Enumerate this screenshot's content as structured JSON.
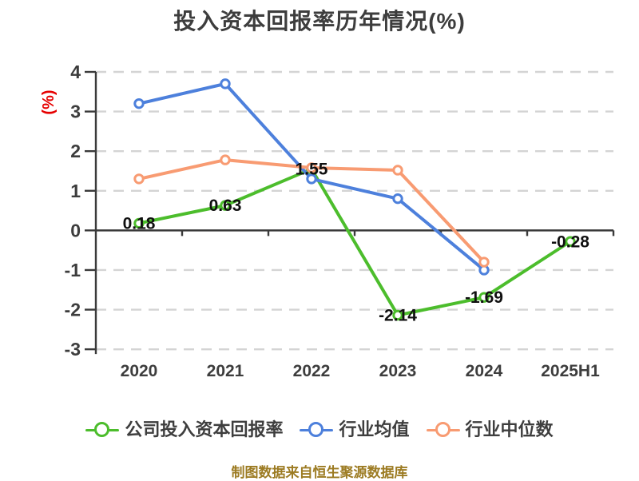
{
  "page": {
    "background": "#ffffff"
  },
  "footer": {
    "source_note": "制图数据来自恒生聚源数据库",
    "color": "#9c7b22"
  },
  "chart_data": {
    "type": "line",
    "title": "投入资本回报率历年情况(%)",
    "unit_label": "(%)",
    "unit_label_color": "#e60000",
    "categories": [
      "2020",
      "2021",
      "2022",
      "2023",
      "2024",
      "2025H1"
    ],
    "y_ticks": [
      4,
      3,
      2,
      1,
      0,
      -1,
      -2,
      -3
    ],
    "ylim": [
      -3,
      4
    ],
    "grid": "horizontal-dashed",
    "grid_color": "#d4d4d4",
    "axis_color": "#3a3a3a",
    "legend_position": "bottom",
    "marker": "circle-white-fill",
    "series": [
      {
        "name": "公司投入资本回报率",
        "color": "#4cbd2c",
        "values": [
          0.18,
          0.63,
          1.55,
          -2.14,
          -1.69,
          -0.28
        ],
        "point_labels": [
          "0.18",
          "0.63",
          "1.55",
          "-2.14",
          "-1.69",
          "-0.28"
        ]
      },
      {
        "name": "行业均值",
        "color": "#4d80dc",
        "values": [
          3.2,
          3.7,
          1.3,
          0.8,
          -1.0,
          null
        ],
        "point_labels": null
      },
      {
        "name": "行业中位数",
        "color": "#f89b72",
        "values": [
          1.3,
          1.78,
          1.58,
          1.52,
          -0.8,
          null
        ],
        "point_labels": null
      }
    ]
  }
}
